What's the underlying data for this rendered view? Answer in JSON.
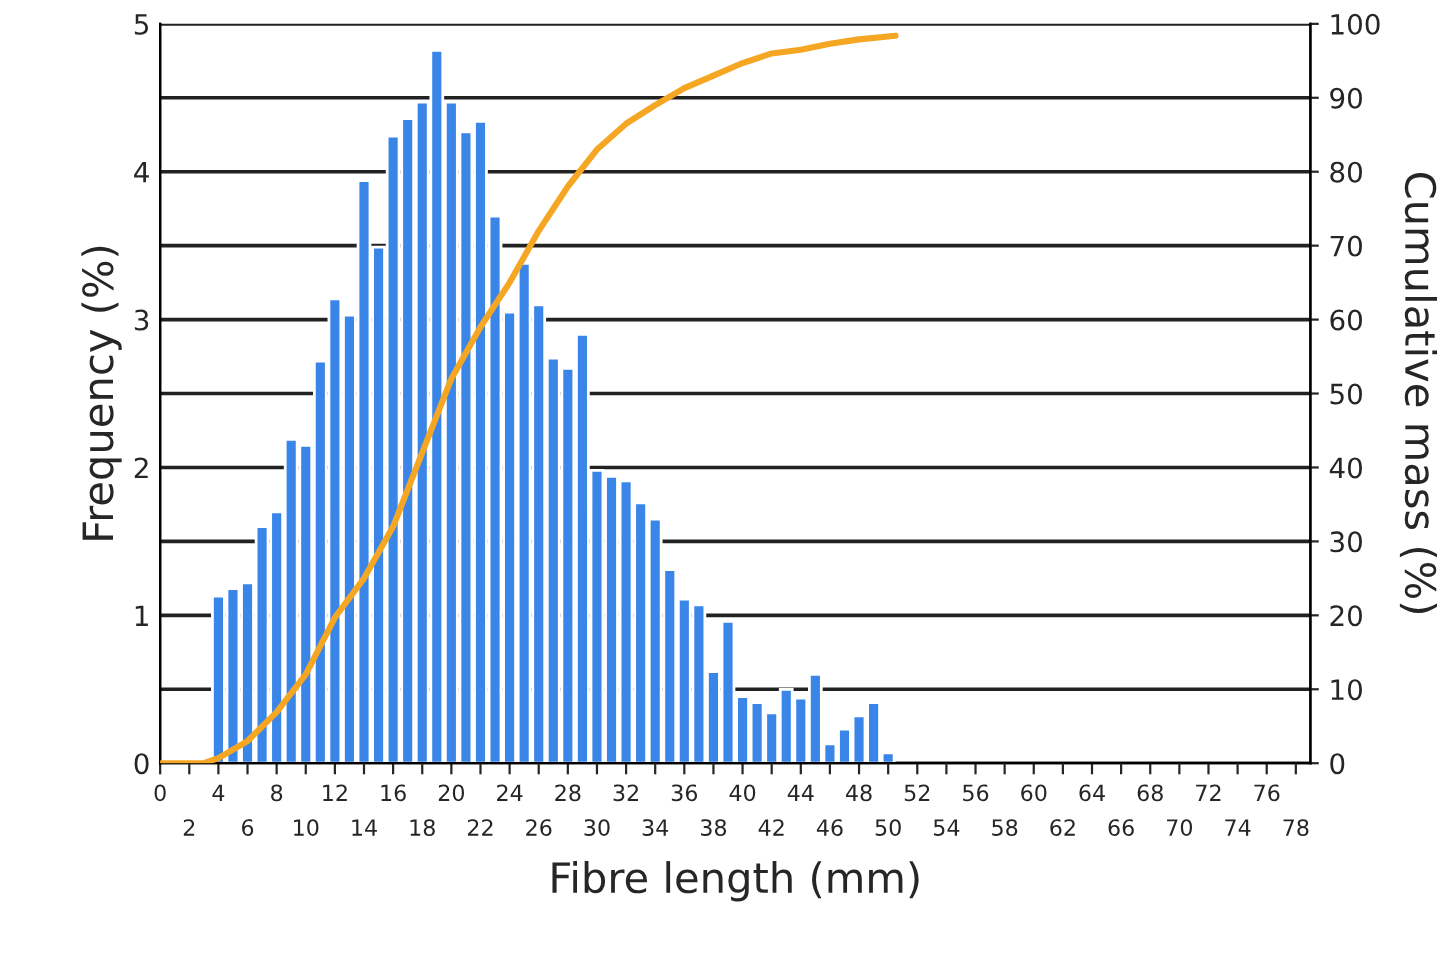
{
  "chart_data": {
    "type": "histogram",
    "xlabel": "Fibre length (mm)",
    "ylabel": "Frequency (%)",
    "y2label": "Cumulative mass (%)",
    "bins": [
      3.5,
      4.5,
      5.5,
      6.5,
      7.5,
      8.5,
      9.5,
      10.5,
      11.5,
      12.5,
      13.5,
      14.5,
      15.5,
      16.5,
      17.5,
      18.5,
      19.5,
      20.5,
      21.5,
      22.5,
      23.5,
      24.5,
      25.5,
      26.5,
      27.5,
      28.5,
      29.5,
      30.5,
      31.5,
      32.5,
      33.5,
      34.5,
      35.5,
      36.5,
      37.5,
      38.5,
      39.5,
      40.5,
      41.5,
      42.5,
      43.5,
      44.5,
      45.5,
      46.5,
      47.5,
      48.5,
      49.5,
      50.5
    ],
    "values": [
      1.13,
      1.18,
      1.22,
      1.6,
      1.7,
      2.19,
      2.15,
      2.72,
      3.14,
      3.03,
      3.94,
      3.49,
      4.24,
      4.36,
      4.47,
      4.82,
      4.47,
      4.27,
      4.34,
      3.7,
      3.05,
      3.38,
      3.1,
      2.74,
      2.67,
      2.9,
      1.98,
      1.94,
      1.91,
      1.76,
      1.65,
      1.31,
      1.11,
      1.07,
      0.62,
      0.96,
      0.45,
      0.41,
      0.34,
      0.5,
      0.44,
      0.6,
      0.13,
      0.23,
      0.32,
      0.41,
      0.07
    ],
    "color": "#3a86e8",
    "series": [
      {
        "type": "line",
        "axis": "y2",
        "color": "#f5a623",
        "x": [
          0,
          3,
          4,
          6,
          8,
          10,
          12,
          14,
          16,
          18,
          20,
          22,
          24,
          26,
          28,
          30,
          32,
          34,
          36,
          38,
          40,
          42,
          44,
          46,
          48,
          50.5
        ],
        "values": [
          0,
          0,
          0.7,
          3,
          6.9,
          12,
          19.7,
          25,
          32,
          42,
          52,
          59,
          65,
          72,
          78,
          83,
          86.5,
          89,
          91.3,
          93,
          94.7,
          96,
          96.5,
          97.3,
          97.9,
          98.4
        ]
      }
    ],
    "xlim": [
      0,
      79
    ],
    "xticks": [
      0,
      4,
      8,
      12,
      16,
      20,
      24,
      28,
      32,
      36,
      40,
      44,
      48,
      52,
      56,
      60,
      64,
      68,
      72,
      76
    ],
    "x2lim": [
      0,
      79
    ],
    "x2ticks": [
      2,
      6,
      10,
      14,
      18,
      22,
      26,
      30,
      34,
      38,
      42,
      46,
      50,
      54,
      58,
      62,
      66,
      70,
      74,
      78
    ],
    "ylim": [
      0,
      5
    ],
    "yticks": [
      0,
      {
        "value": 0.5,
        "label": null
      },
      1,
      {
        "value": 1.5,
        "label": null
      },
      2,
      {
        "value": 2.5,
        "label": null
      },
      3,
      {
        "value": 3.5,
        "label": null
      },
      4,
      {
        "value": 4.5,
        "label": null
      },
      5
    ],
    "y2lim": [
      0,
      100
    ],
    "y2ticks": [
      0,
      10,
      20,
      30,
      40,
      50,
      60,
      70,
      80,
      90,
      100
    ],
    "grid": "y"
  }
}
